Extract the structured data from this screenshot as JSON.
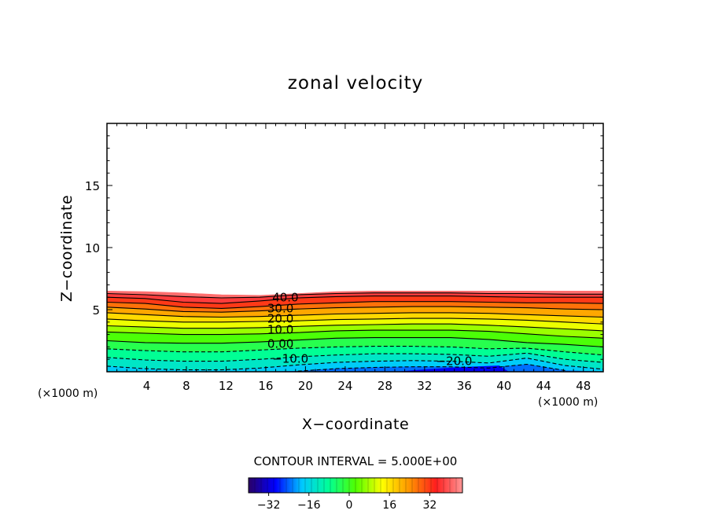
{
  "chart_data": {
    "type": "contour",
    "title": "zonal velocity",
    "xlabel": "X−coordinate",
    "ylabel": "Z−coordinate",
    "x_unit_left": "(×1000 m)",
    "x_unit_right": "(×1000 m)",
    "xlim": [
      0,
      50
    ],
    "ylim": [
      0,
      20
    ],
    "x_ticks": [
      4,
      8,
      12,
      16,
      20,
      24,
      28,
      32,
      36,
      40,
      44,
      48
    ],
    "y_ticks": [
      5,
      10,
      15
    ],
    "field_top": [
      6.5,
      6.45,
      6.35,
      6.2,
      6.15,
      6.3,
      6.45,
      6.5,
      6.5,
      6.5,
      6.5,
      6.5,
      6.5,
      6.5
    ],
    "contours": [
      {
        "label": "40.0",
        "y": [
          6.3,
          6.2,
          6.05,
          5.95,
          6.0,
          6.2,
          6.3,
          6.35,
          6.35,
          6.35,
          6.3,
          6.3,
          6.25,
          6.25
        ]
      },
      {
        "label": "",
        "y": [
          6.0,
          5.9,
          5.6,
          5.5,
          5.7,
          5.95,
          6.05,
          6.1,
          6.1,
          6.1,
          6.05,
          6.0,
          6.0,
          6.0
        ]
      },
      {
        "label": "30.0",
        "y": [
          5.6,
          5.5,
          5.2,
          5.1,
          5.25,
          5.45,
          5.55,
          5.65,
          5.65,
          5.65,
          5.6,
          5.55,
          5.55,
          5.5
        ]
      },
      {
        "label": "",
        "y": [
          5.2,
          5.05,
          4.85,
          4.8,
          4.9,
          5.05,
          5.15,
          5.2,
          5.25,
          5.25,
          5.2,
          5.15,
          5.05,
          5.0
        ]
      },
      {
        "label": "20.0",
        "y": [
          4.75,
          4.6,
          4.45,
          4.4,
          4.45,
          4.55,
          4.65,
          4.7,
          4.75,
          4.75,
          4.7,
          4.6,
          4.5,
          4.4
        ]
      },
      {
        "label": "",
        "y": [
          4.25,
          4.1,
          4.0,
          4.0,
          4.05,
          4.1,
          4.2,
          4.25,
          4.3,
          4.3,
          4.25,
          4.15,
          4.0,
          3.85
        ]
      },
      {
        "label": "10.0",
        "y": [
          3.7,
          3.6,
          3.5,
          3.5,
          3.55,
          3.65,
          3.75,
          3.8,
          3.85,
          3.85,
          3.75,
          3.6,
          3.45,
          3.3
        ]
      },
      {
        "label": "",
        "y": [
          3.2,
          3.1,
          3.0,
          3.0,
          3.05,
          3.15,
          3.3,
          3.35,
          3.35,
          3.35,
          3.25,
          3.05,
          2.85,
          2.7
        ]
      },
      {
        "label": "0.00",
        "y": [
          2.5,
          2.35,
          2.3,
          2.3,
          2.4,
          2.55,
          2.7,
          2.75,
          2.75,
          2.75,
          2.6,
          2.35,
          2.2,
          2.0
        ]
      },
      {
        "label": "",
        "y": [
          1.85,
          1.7,
          1.6,
          1.6,
          1.75,
          1.9,
          2.0,
          2.05,
          2.05,
          2.0,
          1.85,
          1.9,
          1.6,
          1.35
        ]
      },
      {
        "label": "−10.0",
        "y": [
          1.15,
          0.95,
          0.85,
          0.85,
          1.0,
          1.2,
          1.35,
          1.45,
          1.45,
          1.4,
          1.25,
          1.5,
          1.0,
          0.75
        ]
      },
      {
        "label": "",
        "y": [
          0.45,
          0.25,
          0.15,
          0.15,
          0.3,
          0.55,
          0.75,
          0.85,
          0.9,
          0.85,
          0.7,
          1.1,
          0.5,
          0.2
        ]
      },
      {
        "label": "−20.0",
        "y": [
          null,
          null,
          null,
          null,
          null,
          0.05,
          0.25,
          0.35,
          0.4,
          0.4,
          0.3,
          0.6,
          0.1,
          null
        ]
      }
    ],
    "contour_interval_text": "CONTOUR INTERVAL = 5.000E+00",
    "colorbar": {
      "range": [
        -40,
        45
      ],
      "tick_values": [
        -32,
        -16,
        0,
        16,
        32
      ],
      "tick_labels": [
        "−32",
        "−16",
        "0",
        "16",
        "32"
      ]
    },
    "colors": {
      "background": "#ffffff",
      "frame": "#000000",
      "colormap": [
        "#2a0066",
        "#0000ff",
        "#00c8ff",
        "#00ff96",
        "#50ff00",
        "#ffff00",
        "#ff9600",
        "#ff1e1e",
        "#ff9696"
      ]
    }
  }
}
